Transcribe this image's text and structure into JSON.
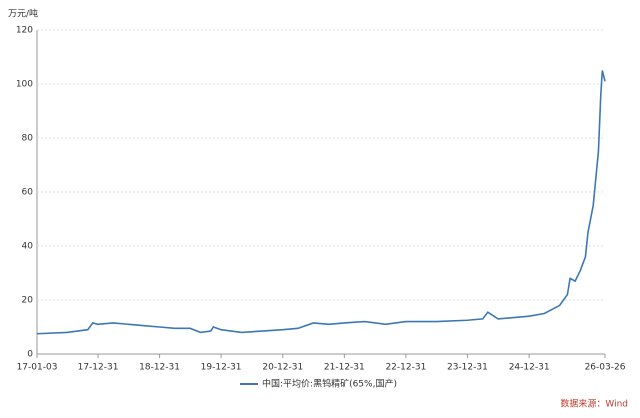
{
  "chart_data": {
    "type": "line",
    "y_unit": "万元/吨",
    "source": "数据来源：Wind",
    "x": [
      "17-01-03",
      "17-06-30",
      "17-10-31",
      "17-11-30",
      "17-12-31",
      "18-03-31",
      "18-06-30",
      "18-09-30",
      "18-12-31",
      "19-03-31",
      "19-06-30",
      "19-08-31",
      "19-10-31",
      "19-11-15",
      "19-12-31",
      "20-04-30",
      "20-08-31",
      "20-12-31",
      "21-03-31",
      "21-06-30",
      "21-09-30",
      "21-12-31",
      "22-04-30",
      "22-08-31",
      "22-12-31",
      "23-06-30",
      "23-12-31",
      "24-03-31",
      "24-04-30",
      "24-06-30",
      "24-12-31",
      "25-03-31",
      "25-06-30",
      "25-08-15",
      "25-08-31",
      "25-09-30",
      "25-10-31",
      "25-11-30",
      "25-12-15",
      "26-01-15",
      "26-02-15",
      "26-03-01",
      "26-03-10",
      "26-03-26"
    ],
    "series": [
      {
        "name": "中国:平均价:黑钨精矿(65%,国产)",
        "color": "#3d78b4",
        "values": [
          7.5,
          8,
          9,
          11.5,
          11,
          11.5,
          11,
          10.5,
          10,
          9.5,
          9.5,
          8,
          8.5,
          10,
          9,
          8,
          8.5,
          9,
          9.5,
          11.5,
          11,
          11.5,
          12,
          11,
          12,
          12,
          12.5,
          13,
          15.5,
          13,
          14,
          15,
          18,
          22,
          28,
          27,
          31,
          36,
          45,
          55,
          75,
          96,
          105,
          101
        ]
      }
    ],
    "xlim": [
      "17-01-03",
      "26-03-26"
    ],
    "xticks": [
      "17-01-03",
      "17-12-31",
      "18-12-31",
      "19-12-31",
      "20-12-31",
      "21-12-31",
      "22-12-31",
      "23-12-31",
      "24-12-31",
      "26-03-26"
    ],
    "ylim": [
      0,
      120
    ],
    "yticks": [
      0,
      20,
      40,
      60,
      80,
      100,
      120
    ],
    "grid": true
  }
}
